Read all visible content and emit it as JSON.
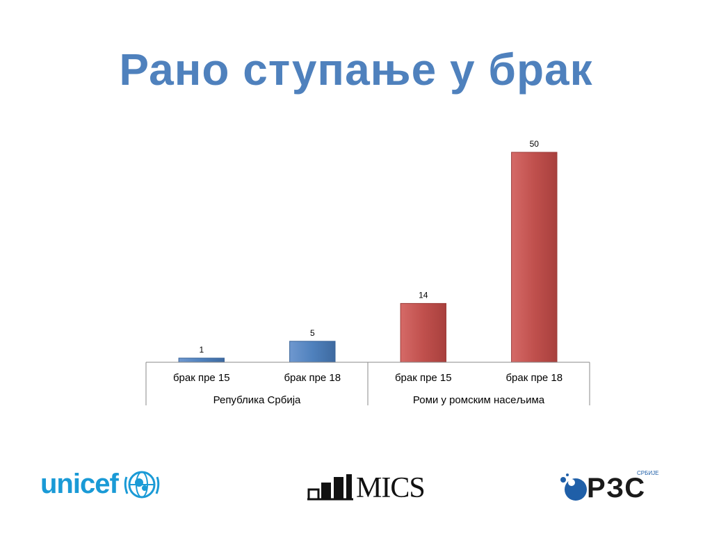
{
  "slide": {
    "title": "Рано ступање у брак"
  },
  "chart_data": {
    "type": "bar",
    "groups": [
      {
        "label": "Република Србија",
        "color": "#4f81bd",
        "bars": [
          {
            "category": "брак пре 15",
            "value": 1
          },
          {
            "category": "брак пре 18",
            "value": 5
          }
        ]
      },
      {
        "label": "Роми у ромским насељима",
        "color": "#c0504d",
        "bars": [
          {
            "category": "брак пре 15",
            "value": 14
          },
          {
            "category": "брак пре 18",
            "value": 50
          }
        ]
      }
    ],
    "ylim": [
      0,
      50
    ],
    "grid": false,
    "legend": "none",
    "data_labels": true
  },
  "logos": {
    "unicef": "unicef",
    "mics": "MICS",
    "rzs": "РЗС",
    "rzs_sub": "СРБИЈЕ"
  },
  "colors": {
    "title": "#4f81bd",
    "unicef_blue": "#1a9ad6",
    "rzs_blue": "#1f5fa8"
  }
}
